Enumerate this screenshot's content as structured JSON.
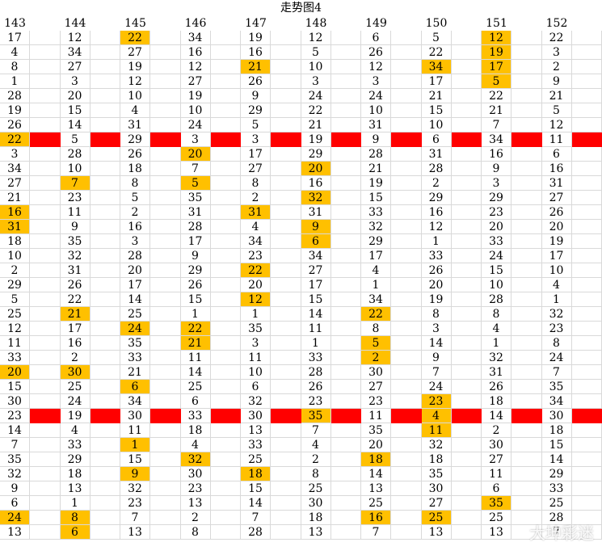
{
  "title": "走势图4",
  "watermark": "大坤彩迷",
  "colors": {
    "highlight": "#ffc000",
    "marker": "#ff0000",
    "grid": "#d9d9d9"
  },
  "chart_data": {
    "type": "table",
    "title": "走势图4",
    "columns": [
      "143",
      "144",
      "145",
      "146",
      "147",
      "148",
      "149",
      "150",
      "151",
      "152"
    ],
    "rows": [
      [
        17,
        12,
        22,
        34,
        19,
        12,
        6,
        5,
        12,
        22
      ],
      [
        4,
        34,
        27,
        16,
        16,
        5,
        26,
        22,
        19,
        3
      ],
      [
        8,
        27,
        19,
        12,
        21,
        10,
        12,
        34,
        17,
        2
      ],
      [
        1,
        3,
        12,
        27,
        26,
        3,
        3,
        17,
        5,
        9
      ],
      [
        28,
        20,
        10,
        19,
        9,
        24,
        24,
        21,
        22,
        21
      ],
      [
        19,
        15,
        4,
        10,
        29,
        22,
        10,
        15,
        21,
        5
      ],
      [
        26,
        14,
        31,
        24,
        5,
        21,
        31,
        10,
        7,
        12
      ],
      [
        22,
        5,
        29,
        3,
        3,
        19,
        9,
        6,
        34,
        11
      ],
      [
        3,
        28,
        26,
        20,
        17,
        29,
        28,
        31,
        16,
        6
      ],
      [
        34,
        10,
        18,
        7,
        27,
        20,
        21,
        28,
        9,
        16
      ],
      [
        27,
        7,
        8,
        5,
        8,
        16,
        19,
        2,
        3,
        31
      ],
      [
        21,
        23,
        5,
        35,
        2,
        32,
        15,
        29,
        29,
        27
      ],
      [
        16,
        11,
        2,
        31,
        31,
        31,
        33,
        16,
        23,
        26
      ],
      [
        31,
        9,
        16,
        28,
        4,
        9,
        32,
        12,
        20,
        20
      ],
      [
        18,
        35,
        3,
        17,
        34,
        6,
        29,
        1,
        33,
        19
      ],
      [
        10,
        32,
        28,
        9,
        23,
        34,
        17,
        33,
        24,
        17
      ],
      [
        2,
        31,
        20,
        29,
        22,
        27,
        4,
        26,
        15,
        10
      ],
      [
        29,
        26,
        17,
        26,
        20,
        17,
        1,
        20,
        10,
        4
      ],
      [
        5,
        22,
        14,
        15,
        12,
        15,
        34,
        19,
        28,
        1
      ],
      [
        25,
        21,
        25,
        1,
        1,
        14,
        22,
        8,
        8,
        32
      ],
      [
        12,
        17,
        24,
        22,
        35,
        11,
        8,
        3,
        4,
        23
      ],
      [
        11,
        16,
        35,
        21,
        3,
        1,
        5,
        14,
        1,
        8
      ],
      [
        33,
        2,
        33,
        11,
        11,
        33,
        2,
        9,
        32,
        24
      ],
      [
        20,
        30,
        21,
        14,
        10,
        28,
        30,
        7,
        31,
        7
      ],
      [
        15,
        25,
        6,
        25,
        6,
        26,
        27,
        24,
        26,
        35
      ],
      [
        30,
        24,
        34,
        6,
        32,
        23,
        23,
        23,
        18,
        34
      ],
      [
        23,
        19,
        30,
        33,
        30,
        35,
        11,
        4,
        14,
        30
      ],
      [
        14,
        4,
        11,
        18,
        13,
        7,
        35,
        11,
        2,
        18
      ],
      [
        7,
        33,
        1,
        4,
        33,
        4,
        20,
        32,
        30,
        15
      ],
      [
        35,
        29,
        15,
        32,
        25,
        2,
        18,
        18,
        27,
        14
      ],
      [
        32,
        18,
        9,
        30,
        18,
        8,
        14,
        35,
        11,
        29
      ],
      [
        9,
        13,
        32,
        23,
        15,
        25,
        13,
        30,
        6,
        33
      ],
      [
        6,
        1,
        23,
        13,
        14,
        30,
        25,
        27,
        35,
        25
      ],
      [
        24,
        8,
        7,
        2,
        7,
        18,
        16,
        25,
        25,
        28
      ],
      [
        13,
        6,
        13,
        8,
        28,
        13,
        7,
        13,
        13,
        7
      ]
    ],
    "highlighted": [
      [
        0,
        2
      ],
      [
        0,
        8
      ],
      [
        1,
        8
      ],
      [
        2,
        4
      ],
      [
        2,
        7
      ],
      [
        2,
        8
      ],
      [
        3,
        8
      ],
      [
        7,
        0
      ],
      [
        8,
        3
      ],
      [
        9,
        5
      ],
      [
        10,
        1
      ],
      [
        10,
        3
      ],
      [
        11,
        5
      ],
      [
        12,
        0
      ],
      [
        12,
        4
      ],
      [
        13,
        0
      ],
      [
        13,
        5
      ],
      [
        14,
        5
      ],
      [
        16,
        4
      ],
      [
        18,
        4
      ],
      [
        19,
        1
      ],
      [
        19,
        6
      ],
      [
        20,
        2
      ],
      [
        20,
        3
      ],
      [
        21,
        3
      ],
      [
        21,
        6
      ],
      [
        22,
        6
      ],
      [
        23,
        0
      ],
      [
        23,
        1
      ],
      [
        24,
        2
      ],
      [
        25,
        7
      ],
      [
        26,
        5
      ],
      [
        26,
        7
      ],
      [
        27,
        7
      ],
      [
        28,
        2
      ],
      [
        29,
        3
      ],
      [
        29,
        6
      ],
      [
        30,
        2
      ],
      [
        30,
        4
      ],
      [
        32,
        8
      ],
      [
        33,
        0
      ],
      [
        33,
        1
      ],
      [
        33,
        6
      ],
      [
        33,
        7
      ],
      [
        34,
        1
      ]
    ],
    "marker_rows": [
      7,
      26
    ]
  }
}
